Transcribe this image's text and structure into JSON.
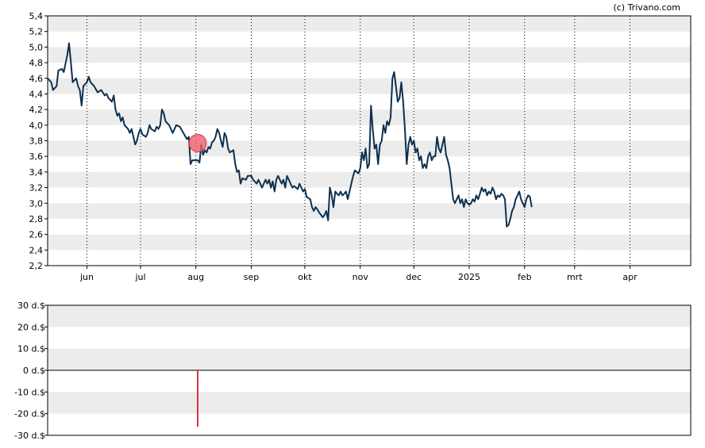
{
  "copyright": "(c) Trivano.com",
  "colors": {
    "price_line": "#0d3050",
    "band": "#ececec",
    "marker_fill": "#f06070",
    "marker_stroke": "#e03040",
    "volume_bar": "#e03040"
  },
  "chart_data": [
    {
      "type": "line",
      "title": "",
      "ylim": [
        2.2,
        5.4
      ],
      "yticks": [
        "5,4",
        "5,2",
        "5,0",
        "4,8",
        "4,6",
        "4,4",
        "4,2",
        "4,0",
        "3,8",
        "3,6",
        "3,4",
        "3,2",
        "3,0",
        "2,8",
        "2,6",
        "2,4",
        "2,2"
      ],
      "xticks": [
        "jun",
        "jul",
        "aug",
        "sep",
        "okt",
        "nov",
        "dec",
        "2025",
        "feb",
        "mrt",
        "apr"
      ],
      "xtick_days": [
        22,
        52,
        83,
        114,
        144,
        175,
        205,
        236,
        267,
        295,
        326
      ],
      "x_range_days": [
        0,
        360
      ],
      "grid": "vertical dotted at month ticks, alternating horizontal bands",
      "series": [
        {
          "points": [
            [
              0,
              4.6
            ],
            [
              2,
              4.55
            ],
            [
              3,
              4.45
            ],
            [
              5,
              4.5
            ],
            [
              6,
              4.7
            ],
            [
              8,
              4.72
            ],
            [
              9,
              4.68
            ],
            [
              11,
              4.9
            ],
            [
              12,
              5.05
            ],
            [
              13,
              4.8
            ],
            [
              14,
              4.55
            ],
            [
              16,
              4.6
            ],
            [
              17,
              4.5
            ],
            [
              18,
              4.45
            ],
            [
              19,
              4.25
            ],
            [
              20,
              4.5
            ],
            [
              22,
              4.55
            ],
            [
              23,
              4.62
            ],
            [
              24,
              4.55
            ],
            [
              26,
              4.5
            ],
            [
              28,
              4.42
            ],
            [
              30,
              4.45
            ],
            [
              32,
              4.38
            ],
            [
              33,
              4.4
            ],
            [
              34,
              4.35
            ],
            [
              36,
              4.3
            ],
            [
              37,
              4.38
            ],
            [
              38,
              4.2
            ],
            [
              39,
              4.12
            ],
            [
              40,
              4.15
            ],
            [
              41,
              4.05
            ],
            [
              42,
              4.1
            ],
            [
              43,
              4.0
            ],
            [
              45,
              3.95
            ],
            [
              46,
              3.9
            ],
            [
              47,
              3.95
            ],
            [
              48,
              3.85
            ],
            [
              49,
              3.75
            ],
            [
              50,
              3.8
            ],
            [
              51,
              3.9
            ],
            [
              52,
              3.95
            ],
            [
              53,
              3.88
            ],
            [
              55,
              3.85
            ],
            [
              56,
              3.9
            ],
            [
              57,
              4.0
            ],
            [
              58,
              3.95
            ],
            [
              60,
              3.92
            ],
            [
              61,
              3.98
            ],
            [
              62,
              3.95
            ],
            [
              63,
              4.0
            ],
            [
              64,
              4.2
            ],
            [
              65,
              4.15
            ],
            [
              66,
              4.05
            ],
            [
              68,
              4.0
            ],
            [
              69,
              3.95
            ],
            [
              70,
              3.9
            ],
            [
              71,
              3.95
            ],
            [
              72,
              4.0
            ],
            [
              74,
              3.98
            ],
            [
              76,
              3.9
            ],
            [
              78,
              3.82
            ],
            [
              79,
              3.85
            ],
            [
              80,
              3.5
            ],
            [
              81,
              3.55
            ],
            [
              84,
              3.55
            ],
            [
              85,
              3.52
            ],
            [
              86,
              3.75
            ],
            [
              87,
              3.62
            ],
            [
              88,
              3.68
            ],
            [
              89,
              3.65
            ],
            [
              90,
              3.72
            ],
            [
              91,
              3.7
            ],
            [
              92,
              3.78
            ],
            [
              93,
              3.8
            ],
            [
              94,
              3.85
            ],
            [
              95,
              3.95
            ],
            [
              96,
              3.9
            ],
            [
              97,
              3.8
            ],
            [
              98,
              3.72
            ],
            [
              99,
              3.9
            ],
            [
              100,
              3.85
            ],
            [
              101,
              3.7
            ],
            [
              102,
              3.65
            ],
            [
              104,
              3.68
            ],
            [
              105,
              3.5
            ],
            [
              106,
              3.4
            ],
            [
              107,
              3.42
            ],
            [
              108,
              3.25
            ],
            [
              109,
              3.32
            ],
            [
              111,
              3.3
            ],
            [
              112,
              3.35
            ],
            [
              114,
              3.35
            ],
            [
              115,
              3.3
            ],
            [
              117,
              3.25
            ],
            [
              118,
              3.3
            ],
            [
              119,
              3.25
            ],
            [
              120,
              3.2
            ],
            [
              122,
              3.3
            ],
            [
              123,
              3.25
            ],
            [
              124,
              3.3
            ],
            [
              125,
              3.2
            ],
            [
              126,
              3.28
            ],
            [
              127,
              3.15
            ],
            [
              128,
              3.3
            ],
            [
              129,
              3.35
            ],
            [
              130,
              3.3
            ],
            [
              131,
              3.25
            ],
            [
              132,
              3.3
            ],
            [
              133,
              3.2
            ],
            [
              134,
              3.35
            ],
            [
              135,
              3.3
            ],
            [
              136,
              3.25
            ],
            [
              137,
              3.2
            ],
            [
              138,
              3.22
            ],
            [
              140,
              3.18
            ],
            [
              141,
              3.25
            ],
            [
              142,
              3.2
            ],
            [
              143,
              3.15
            ],
            [
              144,
              3.18
            ],
            [
              145,
              3.08
            ],
            [
              147,
              3.05
            ],
            [
              148,
              2.95
            ],
            [
              149,
              2.9
            ],
            [
              150,
              2.95
            ],
            [
              151,
              2.92
            ],
            [
              152,
              2.88
            ],
            [
              153,
              2.85
            ],
            [
              154,
              2.82
            ],
            [
              155,
              2.85
            ],
            [
              156,
              2.9
            ],
            [
              157,
              2.78
            ],
            [
              158,
              3.2
            ],
            [
              159,
              3.1
            ],
            [
              160,
              2.95
            ],
            [
              161,
              3.15
            ],
            [
              162,
              3.12
            ],
            [
              163,
              3.1
            ],
            [
              164,
              3.15
            ],
            [
              165,
              3.1
            ],
            [
              166,
              3.12
            ],
            [
              167,
              3.15
            ],
            [
              168,
              3.05
            ],
            [
              169,
              3.15
            ],
            [
              170,
              3.25
            ],
            [
              171,
              3.35
            ],
            [
              172,
              3.42
            ],
            [
              173,
              3.4
            ],
            [
              174,
              3.38
            ],
            [
              175,
              3.45
            ],
            [
              176,
              3.65
            ],
            [
              177,
              3.55
            ],
            [
              178,
              3.7
            ],
            [
              179,
              3.45
            ],
            [
              180,
              3.5
            ],
            [
              181,
              4.25
            ],
            [
              182,
              3.95
            ],
            [
              183,
              3.7
            ],
            [
              184,
              3.75
            ],
            [
              185,
              3.5
            ],
            [
              186,
              3.75
            ],
            [
              187,
              3.8
            ],
            [
              188,
              4.0
            ],
            [
              189,
              3.9
            ],
            [
              190,
              4.05
            ],
            [
              191,
              4.0
            ],
            [
              192,
              4.1
            ],
            [
              193,
              4.6
            ],
            [
              194,
              4.68
            ],
            [
              195,
              4.5
            ],
            [
              196,
              4.3
            ],
            [
              197,
              4.35
            ],
            [
              198,
              4.55
            ],
            [
              199,
              4.3
            ],
            [
              200,
              3.95
            ],
            [
              201,
              3.5
            ],
            [
              202,
              3.75
            ],
            [
              203,
              3.85
            ],
            [
              204,
              3.75
            ],
            [
              205,
              3.8
            ],
            [
              206,
              3.65
            ],
            [
              207,
              3.7
            ],
            [
              208,
              3.55
            ],
            [
              209,
              3.6
            ],
            [
              210,
              3.45
            ],
            [
              211,
              3.5
            ],
            [
              212,
              3.45
            ],
            [
              213,
              3.6
            ],
            [
              214,
              3.65
            ],
            [
              215,
              3.55
            ],
            [
              216,
              3.6
            ],
            [
              217,
              3.6
            ],
            [
              218,
              3.85
            ],
            [
              219,
              3.7
            ],
            [
              220,
              3.65
            ],
            [
              221,
              3.75
            ],
            [
              222,
              3.85
            ],
            [
              223,
              3.62
            ],
            [
              224,
              3.55
            ],
            [
              225,
              3.45
            ],
            [
              226,
              3.25
            ],
            [
              227,
              3.05
            ],
            [
              228,
              3.0
            ],
            [
              229,
              3.05
            ],
            [
              230,
              3.1
            ],
            [
              231,
              3.0
            ],
            [
              232,
              3.05
            ],
            [
              233,
              2.95
            ],
            [
              234,
              3.05
            ],
            [
              235,
              3.0
            ],
            [
              236,
              2.98
            ],
            [
              237,
              3.0
            ],
            [
              238,
              3.05
            ],
            [
              239,
              3.02
            ],
            [
              240,
              3.1
            ],
            [
              241,
              3.05
            ],
            [
              242,
              3.12
            ],
            [
              243,
              3.2
            ],
            [
              244,
              3.15
            ],
            [
              245,
              3.18
            ],
            [
              246,
              3.1
            ],
            [
              247,
              3.15
            ],
            [
              248,
              3.12
            ],
            [
              249,
              3.2
            ],
            [
              250,
              3.15
            ],
            [
              251,
              3.05
            ],
            [
              252,
              3.1
            ],
            [
              253,
              3.08
            ],
            [
              254,
              3.12
            ],
            [
              255,
              3.1
            ],
            [
              256,
              3.05
            ],
            [
              257,
              2.7
            ],
            [
              258,
              2.72
            ],
            [
              259,
              2.8
            ],
            [
              260,
              2.9
            ],
            [
              261,
              2.95
            ],
            [
              262,
              3.05
            ],
            [
              263,
              3.1
            ],
            [
              264,
              3.15
            ],
            [
              265,
              3.05
            ],
            [
              266,
              3.0
            ],
            [
              267,
              2.95
            ],
            [
              268,
              3.05
            ],
            [
              269,
              3.1
            ],
            [
              270,
              3.08
            ],
            [
              271,
              2.95
            ]
          ]
        }
      ],
      "marker": {
        "day": 84,
        "value": 3.77
      }
    },
    {
      "type": "bar",
      "title": "",
      "ylim": [
        -30,
        30
      ],
      "yticks": [
        "30 d.$",
        "20 d.$",
        "10 d.$",
        "0 d.$",
        "-10 d.$",
        "-20 d.$",
        "-30 d.$"
      ],
      "bars": [
        {
          "day": 84,
          "value": -26
        }
      ]
    }
  ]
}
